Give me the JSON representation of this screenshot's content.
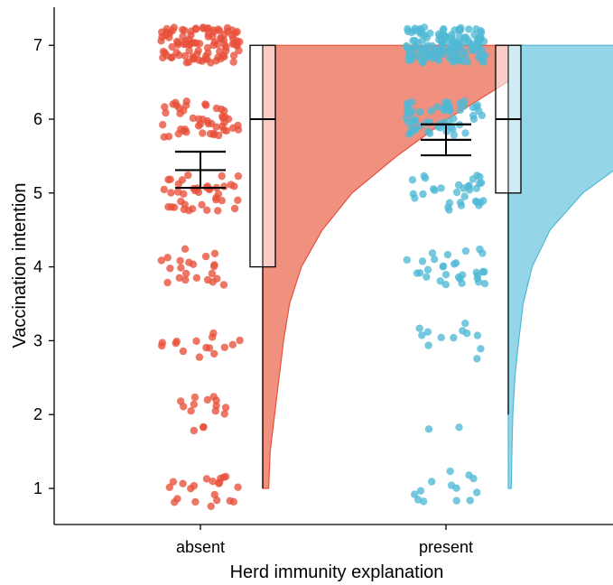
{
  "chart_data": {
    "type": "raincloud",
    "xlabel": "Herd immunity explanation",
    "ylabel": "Vaccination intention",
    "ylim": [
      0.5,
      7.5
    ],
    "yticks": [
      1,
      2,
      3,
      4,
      5,
      6,
      7
    ],
    "categories": [
      "absent",
      "present"
    ],
    "groups": [
      {
        "name": "absent",
        "color": "#E8503A",
        "fill_color": "#F0917F",
        "mean": 5.31,
        "ci": [
          5.07,
          5.56
        ],
        "box": {
          "min": 1,
          "q1": 4,
          "median": 6,
          "q3": 7,
          "max": 7
        },
        "density": [
          [
            1.0,
            0.02
          ],
          [
            1.5,
            0.025
          ],
          [
            2.0,
            0.04
          ],
          [
            2.5,
            0.055
          ],
          [
            3.0,
            0.07
          ],
          [
            3.5,
            0.09
          ],
          [
            4.0,
            0.13
          ],
          [
            4.5,
            0.2
          ],
          [
            5.0,
            0.3
          ],
          [
            5.5,
            0.45
          ],
          [
            6.0,
            0.62
          ],
          [
            6.5,
            0.82
          ],
          [
            7.0,
            0.88
          ]
        ],
        "counts": {
          "1": 21,
          "2": 15,
          "3": 15,
          "4": 22,
          "5": 40,
          "6": 48,
          "7": 100
        }
      },
      {
        "name": "present",
        "color": "#4FB9D5",
        "fill_color": "#94D5E7",
        "mean": 5.72,
        "ci": [
          5.51,
          5.93
        ],
        "box": {
          "min": 2,
          "q1": 5,
          "median": 6,
          "q3": 7,
          "max": 7
        },
        "density": [
          [
            1.0,
            0.01
          ],
          [
            1.5,
            0.012
          ],
          [
            2.0,
            0.015
          ],
          [
            2.5,
            0.022
          ],
          [
            3.0,
            0.035
          ],
          [
            3.5,
            0.05
          ],
          [
            4.0,
            0.08
          ],
          [
            4.5,
            0.14
          ],
          [
            5.0,
            0.25
          ],
          [
            5.5,
            0.42
          ],
          [
            6.0,
            0.65
          ],
          [
            6.5,
            0.9
          ],
          [
            7.0,
            1.0
          ]
        ],
        "counts": {
          "1": 13,
          "2": 2,
          "3": 12,
          "4": 30,
          "5": 32,
          "6": 58,
          "7": 140
        }
      }
    ],
    "grid": false,
    "legend": "none"
  }
}
